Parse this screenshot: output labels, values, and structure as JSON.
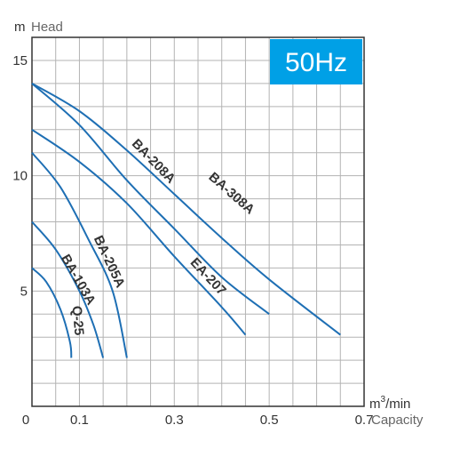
{
  "chart_data": {
    "type": "line",
    "y_axis": {
      "unit": "m",
      "label": "Head",
      "range": [
        0,
        16
      ],
      "ticks": [
        {
          "value": 15,
          "label": "15"
        },
        {
          "value": 10,
          "label": "10"
        },
        {
          "value": 5,
          "label": "5"
        }
      ]
    },
    "x_axis": {
      "unit_base": "m",
      "unit_sup": "3",
      "unit_rest": "/min",
      "label": "Capacity",
      "range": [
        0,
        0.7
      ],
      "ticks": [
        {
          "value": 0,
          "label": "0"
        },
        {
          "value": 0.1,
          "label": "0.1"
        },
        {
          "value": 0.3,
          "label": "0.3"
        },
        {
          "value": 0.5,
          "label": "0.5"
        },
        {
          "value": 0.7,
          "label": "0.7"
        }
      ]
    },
    "grid": true,
    "badge": {
      "text": "50Hz",
      "color": "#00a0e6"
    },
    "line_color": "#1e6fb4",
    "series": [
      {
        "name": "BA-308A",
        "points": [
          [
            0,
            14
          ],
          [
            0.1,
            12.8
          ],
          [
            0.2,
            11.1
          ],
          [
            0.3,
            9.2
          ],
          [
            0.4,
            7.3
          ],
          [
            0.5,
            5.5
          ],
          [
            0.65,
            3.1
          ]
        ],
        "label_at": [
          0.415,
          9.1
        ]
      },
      {
        "name": "BA-208A",
        "points": [
          [
            0,
            14
          ],
          [
            0.1,
            12.2
          ],
          [
            0.2,
            9.8
          ],
          [
            0.3,
            7.7
          ],
          [
            0.4,
            5.6
          ],
          [
            0.5,
            4.0
          ]
        ],
        "label_at": [
          0.25,
          10.5
        ]
      },
      {
        "name": "EA-207",
        "points": [
          [
            0,
            12
          ],
          [
            0.1,
            10.6
          ],
          [
            0.2,
            8.8
          ],
          [
            0.3,
            6.5
          ],
          [
            0.4,
            4.3
          ],
          [
            0.45,
            3.1
          ]
        ],
        "label_at": [
          0.365,
          5.5
        ]
      },
      {
        "name": "BA-205A",
        "points": [
          [
            0,
            11
          ],
          [
            0.06,
            9.5
          ],
          [
            0.12,
            7.2
          ],
          [
            0.17,
            5.0
          ],
          [
            0.2,
            2.1
          ]
        ],
        "label_at": [
          0.155,
          6.2
        ]
      },
      {
        "name": "BA-103A",
        "points": [
          [
            0,
            8
          ],
          [
            0.05,
            6.8
          ],
          [
            0.1,
            5.0
          ],
          [
            0.13,
            3.5
          ],
          [
            0.15,
            2.1
          ]
        ],
        "label_at": [
          0.09,
          5.4
        ]
      },
      {
        "name": "Q-25",
        "points": [
          [
            0,
            6
          ],
          [
            0.03,
            5.4
          ],
          [
            0.06,
            4.2
          ],
          [
            0.08,
            2.8
          ],
          [
            0.083,
            2.1
          ]
        ],
        "label_at": [
          0.088,
          3.7
        ]
      }
    ]
  }
}
